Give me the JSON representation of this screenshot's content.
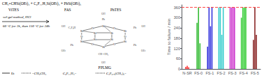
{
  "chart_data": {
    "type": "bar",
    "ylabel": "Time to failure / min",
    "categories": [
      "N-SR",
      "FS-0",
      "FS-1",
      "FS-2",
      "FS-3",
      "FS-4",
      "FS-5"
    ],
    "values": [
      [
        12,
        18,
        10
      ],
      [
        270,
        360,
        150
      ],
      [
        130,
        360,
        250,
        360
      ],
      [
        360,
        360,
        200,
        360
      ],
      [
        360,
        360,
        360,
        360
      ],
      [
        300,
        360,
        360,
        360
      ],
      [
        170,
        360,
        200
      ]
    ],
    "colors": [
      [
        "#ff3333",
        "#ff3333",
        "#ff3333"
      ],
      [
        "#33bb33",
        "#33bb33",
        "#33bb33"
      ],
      [
        "#3333dd",
        "#3333dd",
        "#3333dd",
        "#3333dd"
      ],
      [
        "#33cccc",
        "#33cccc",
        "#33cccc",
        "#33cccc"
      ],
      [
        "#cc33cc",
        "#cc33cc",
        "#cc33cc",
        "#cc33cc"
      ],
      [
        "#33cc33",
        "#33cc33",
        "#33cc33",
        "#33cc33"
      ],
      [
        "#882222",
        "#882222",
        "#882222"
      ]
    ],
    "ylim": [
      0,
      375
    ],
    "yticks": [
      0,
      60,
      120,
      180,
      240,
      300,
      360
    ],
    "grid": false,
    "reference_line": {
      "value": 360,
      "color": "#ff4444",
      "line_style": "dashed"
    },
    "annotations": [
      "CH₂=CHSi(OEt)₃ + C₆F₁₁H₄Si(OEt)₃ + PhSi(OEt)₃",
      "ViTES",
      "FAS",
      "PhTES",
      "sol-gel method, HCl",
      "60 °C for 3h, then 150 °C for 24h",
      "FPLMG",
      "Et",
      "−CH₂CH₃",
      "C₆F₁₁H₄−",
      "C₃F₆.₅(CH₂)₂−",
      "Si",
      "Si",
      "Si",
      "Si",
      "Si",
      "Si",
      "Si",
      "Si",
      "Si",
      "Si",
      "Ph",
      "C₄F₉H",
      "Ph",
      "CH=CH₂",
      "Ph",
      "Ph",
      "O",
      "O",
      "O",
      "O",
      "O",
      "O",
      "OH",
      "OH",
      "OEt",
      "OH",
      "OEt",
      "OH"
    ]
  }
}
